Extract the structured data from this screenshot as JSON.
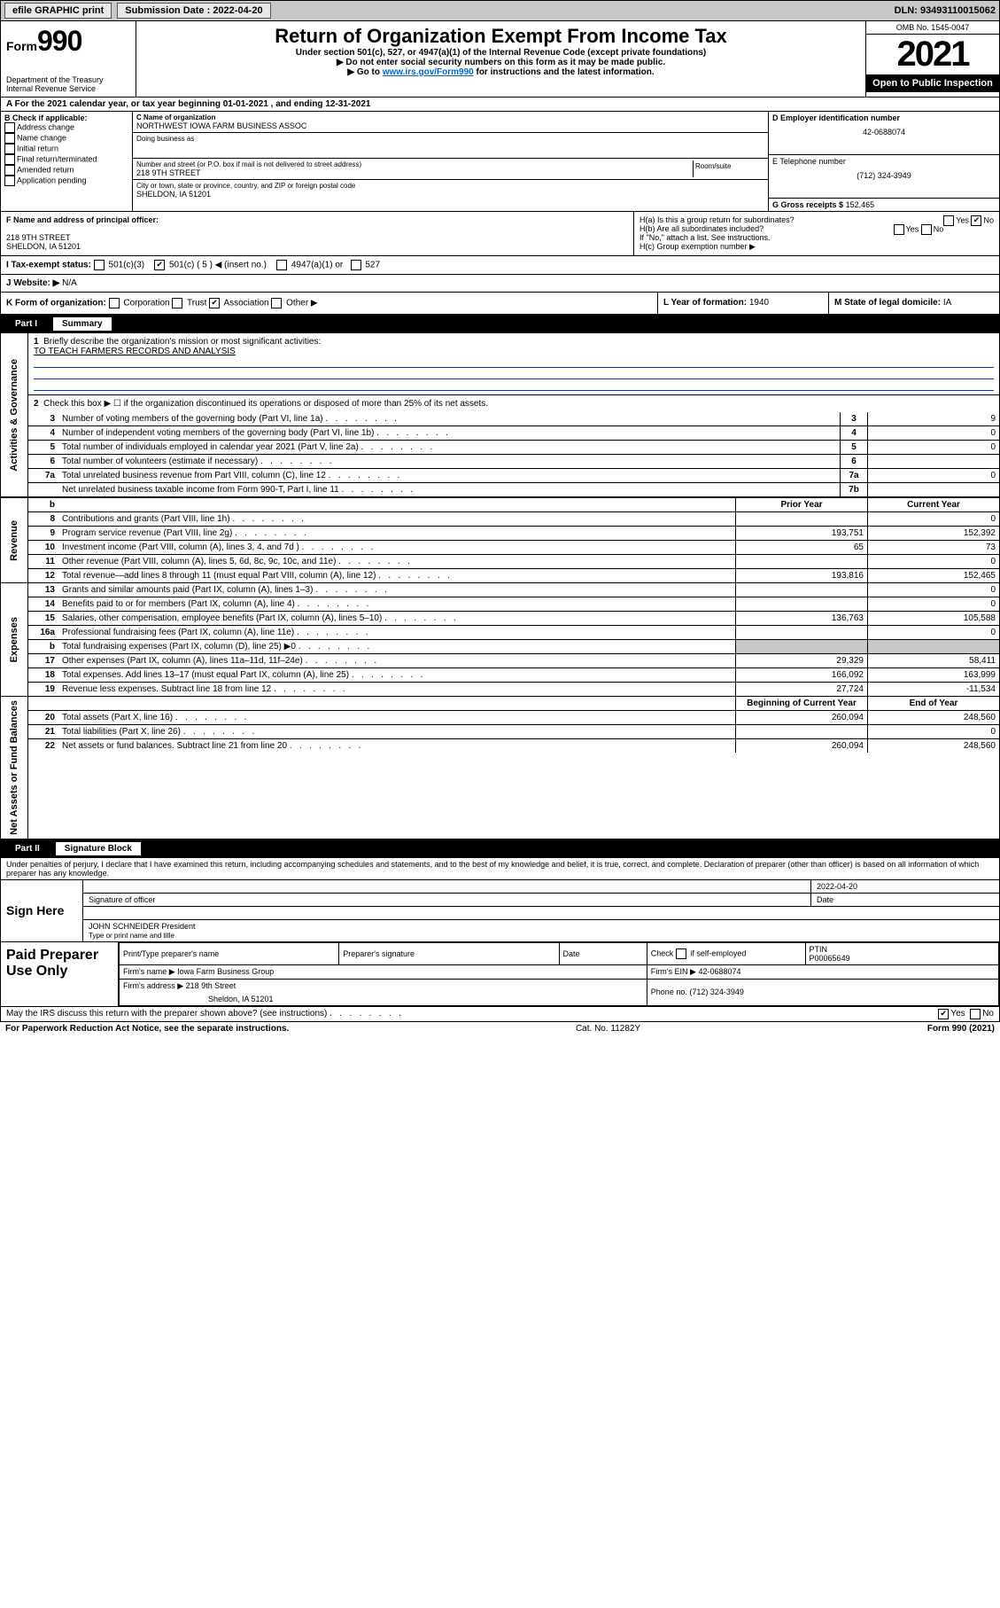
{
  "topbar": {
    "efile": "efile GRAPHIC print",
    "submission_label": "Submission Date : 2022-04-20",
    "dln_label": "DLN: 93493110015062"
  },
  "header": {
    "form_label": "Form",
    "form_number": "990",
    "dept": "Department of the Treasury",
    "irs": "Internal Revenue Service",
    "title": "Return of Organization Exempt From Income Tax",
    "subtitle1": "Under section 501(c), 527, or 4947(a)(1) of the Internal Revenue Code (except private foundations)",
    "subtitle2": "▶ Do not enter social security numbers on this form as it may be made public.",
    "subtitle3_pre": "▶ Go to ",
    "subtitle3_link": "www.irs.gov/Form990",
    "subtitle3_post": " for instructions and the latest information.",
    "omb": "OMB No. 1545-0047",
    "year": "2021",
    "open": "Open to Public Inspection"
  },
  "line_a": "A For the 2021 calendar year, or tax year beginning 01-01-2021   , and ending 12-31-2021",
  "section_b": {
    "label": "B Check if applicable:",
    "opts": [
      "Address change",
      "Name change",
      "Initial return",
      "Final return/terminated",
      "Amended return",
      "Application pending"
    ]
  },
  "section_c": {
    "name_label": "C Name of organization",
    "name": "NORTHWEST IOWA FARM BUSINESS ASSOC",
    "dba_label": "Doing business as",
    "street_label": "Number and street (or P.O. box if mail is not delivered to street address)",
    "room_label": "Room/suite",
    "street": "218 9TH STREET",
    "city_label": "City or town, state or province, country, and ZIP or foreign postal code",
    "city": "SHELDON, IA  51201"
  },
  "section_d": {
    "label": "D Employer identification number",
    "value": "42-0688074"
  },
  "section_e": {
    "label": "E Telephone number",
    "value": "(712) 324-3949"
  },
  "section_g": {
    "label": "G Gross receipts $",
    "value": "152,465"
  },
  "section_f": {
    "label": "F Name and address of principal officer:",
    "line1": "218 9TH STREET",
    "line2": "SHELDON, IA  51201"
  },
  "section_h": {
    "ha": "H(a)  Is this a group return for subordinates?",
    "hb": "H(b)  Are all subordinates included?",
    "note": "If \"No,\" attach a list. See instructions.",
    "hc": "H(c)  Group exemption number ▶",
    "yes": "Yes",
    "no": "No"
  },
  "section_i": {
    "label": "I  Tax-exempt status:",
    "c3": "501(c)(3)",
    "c5": "501(c) ( 5 ) ◀ (insert no.)",
    "a1": "4947(a)(1) or",
    "s527": "527"
  },
  "section_j": {
    "label": "J  Website: ▶",
    "value": "N/A"
  },
  "section_k": {
    "label": "K Form of organization:",
    "opts": [
      "Corporation",
      "Trust",
      "Association",
      "Other ▶"
    ]
  },
  "section_l": {
    "label": "L Year of formation:",
    "value": "1940"
  },
  "section_m": {
    "label": "M State of legal domicile:",
    "value": "IA"
  },
  "part1": {
    "label": "Part I",
    "title": "Summary",
    "side": {
      "ag": "Activities & Governance",
      "rev": "Revenue",
      "exp": "Expenses",
      "net": "Net Assets or Fund Balances"
    },
    "line1": {
      "ln": "1",
      "desc": "Briefly describe the organization's mission or most significant activities:",
      "value": "TO TEACH FARMERS RECORDS AND ANALYSIS"
    },
    "line2": {
      "ln": "2",
      "desc": "Check this box ▶ ☐  if the organization discontinued its operations or disposed of more than 25% of its net assets."
    },
    "lines": [
      {
        "ln": "3",
        "desc": "Number of voting members of the governing body (Part VI, line 1a)",
        "box": "3",
        "val": "9"
      },
      {
        "ln": "4",
        "desc": "Number of independent voting members of the governing body (Part VI, line 1b)",
        "box": "4",
        "val": "0"
      },
      {
        "ln": "5",
        "desc": "Total number of individuals employed in calendar year 2021 (Part V, line 2a)",
        "box": "5",
        "val": "0"
      },
      {
        "ln": "6",
        "desc": "Total number of volunteers (estimate if necessary)",
        "box": "6",
        "val": ""
      },
      {
        "ln": "7a",
        "desc": "Total unrelated business revenue from Part VIII, column (C), line 12",
        "box": "7a",
        "val": "0"
      },
      {
        "ln": "",
        "desc": "Net unrelated business taxable income from Form 990-T, Part I, line 11",
        "box": "7b",
        "val": ""
      }
    ],
    "cols": {
      "prior": "Prior Year",
      "current": "Current Year",
      "boy": "Beginning of Current Year",
      "eoy": "End of Year"
    },
    "revenue": [
      {
        "ln": "8",
        "desc": "Contributions and grants (Part VIII, line 1h)",
        "prior": "",
        "current": "0"
      },
      {
        "ln": "9",
        "desc": "Program service revenue (Part VIII, line 2g)",
        "prior": "193,751",
        "current": "152,392"
      },
      {
        "ln": "10",
        "desc": "Investment income (Part VIII, column (A), lines 3, 4, and 7d )",
        "prior": "65",
        "current": "73"
      },
      {
        "ln": "11",
        "desc": "Other revenue (Part VIII, column (A), lines 5, 6d, 8c, 9c, 10c, and 11e)",
        "prior": "",
        "current": "0"
      },
      {
        "ln": "12",
        "desc": "Total revenue—add lines 8 through 11 (must equal Part VIII, column (A), line 12)",
        "prior": "193,816",
        "current": "152,465"
      }
    ],
    "expenses": [
      {
        "ln": "13",
        "desc": "Grants and similar amounts paid (Part IX, column (A), lines 1–3)",
        "prior": "",
        "current": "0"
      },
      {
        "ln": "14",
        "desc": "Benefits paid to or for members (Part IX, column (A), line 4)",
        "prior": "",
        "current": "0"
      },
      {
        "ln": "15",
        "desc": "Salaries, other compensation, employee benefits (Part IX, column (A), lines 5–10)",
        "prior": "136,763",
        "current": "105,588"
      },
      {
        "ln": "16a",
        "desc": "Professional fundraising fees (Part IX, column (A), line 11e)",
        "prior": "",
        "current": "0"
      },
      {
        "ln": "b",
        "desc": "Total fundraising expenses (Part IX, column (D), line 25) ▶0",
        "prior": "shade",
        "current": "shade"
      },
      {
        "ln": "17",
        "desc": "Other expenses (Part IX, column (A), lines 11a–11d, 11f–24e)",
        "prior": "29,329",
        "current": "58,411"
      },
      {
        "ln": "18",
        "desc": "Total expenses. Add lines 13–17 (must equal Part IX, column (A), line 25)",
        "prior": "166,092",
        "current": "163,999"
      },
      {
        "ln": "19",
        "desc": "Revenue less expenses. Subtract line 18 from line 12",
        "prior": "27,724",
        "current": "-11,534"
      }
    ],
    "net": [
      {
        "ln": "20",
        "desc": "Total assets (Part X, line 16)",
        "prior": "260,094",
        "current": "248,560"
      },
      {
        "ln": "21",
        "desc": "Total liabilities (Part X, line 26)",
        "prior": "",
        "current": "0"
      },
      {
        "ln": "22",
        "desc": "Net assets or fund balances. Subtract line 21 from line 20",
        "prior": "260,094",
        "current": "248,560"
      }
    ]
  },
  "part2": {
    "label": "Part II",
    "title": "Signature Block",
    "penalties": "Under penalties of perjury, I declare that I have examined this return, including accompanying schedules and statements, and to the best of my knowledge and belief, it is true, correct, and complete. Declaration of preparer (other than officer) is based on all information of which preparer has any knowledge."
  },
  "sign": {
    "left": "Sign Here",
    "sig_officer": "Signature of officer",
    "date_label": "Date",
    "date": "2022-04-20",
    "name": "JOHN SCHNEIDER President",
    "name_label": "Type or print name and title"
  },
  "preparer": {
    "left": "Paid Preparer Use Only",
    "h1": "Print/Type preparer's name",
    "h2": "Preparer's signature",
    "h3": "Date",
    "h4_pre": "Check",
    "h4_post": "if self-employed",
    "ptin_label": "PTIN",
    "ptin": "P00065649",
    "firm_name_label": "Firm's name    ▶",
    "firm_name": "Iowa Farm Business Group",
    "firm_ein_label": "Firm's EIN ▶",
    "firm_ein": "42-0688074",
    "firm_addr_label": "Firm's address ▶",
    "firm_addr1": "218 9th Street",
    "firm_addr2": "Sheldon, IA  51201",
    "phone_label": "Phone no.",
    "phone": "(712) 324-3949"
  },
  "footer": {
    "discuss": "May the IRS discuss this return with the preparer shown above? (see instructions)",
    "yes": "Yes",
    "no": "No",
    "paperwork": "For Paperwork Reduction Act Notice, see the separate instructions.",
    "cat": "Cat. No. 11282Y",
    "form": "Form 990 (2021)"
  }
}
